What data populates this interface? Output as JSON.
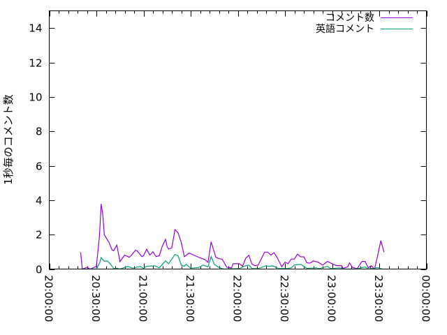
{
  "chart_data": {
    "type": "line",
    "title": "",
    "xlabel": "",
    "ylabel": "1秒毎のコメント数",
    "xlim": [
      "20:00:00",
      "00:00:00"
    ],
    "ylim": [
      0,
      15
    ],
    "x_ticks": [
      "20:00:00",
      "20:30:00",
      "21:00:00",
      "21:30:00",
      "22:00:00",
      "22:30:00",
      "23:00:00",
      "23:30:00",
      "00:00:00"
    ],
    "y_ticks": [
      0,
      2,
      4,
      6,
      8,
      10,
      12,
      14
    ],
    "grid": false,
    "legend_position": "top-right",
    "series": [
      {
        "name": "コメント数",
        "color": "#9400d3",
        "points": [
          [
            "20:20:00",
            0.97
          ],
          [
            "20:21:00",
            0
          ],
          [
            "20:24:00",
            0.1
          ],
          [
            "20:26:00",
            0
          ],
          [
            "20:30:00",
            0.15
          ],
          [
            "20:32:00",
            1.96
          ],
          [
            "20:33:00",
            3.78
          ],
          [
            "20:34:00",
            3.24
          ],
          [
            "20:35:00",
            2.0
          ],
          [
            "20:38:00",
            1.55
          ],
          [
            "20:40:00",
            1.1
          ],
          [
            "20:41:00",
            1.07
          ],
          [
            "20:43:00",
            1.39
          ],
          [
            "20:45:00",
            0.43
          ],
          [
            "20:48:00",
            0.81
          ],
          [
            "20:51:00",
            0.68
          ],
          [
            "20:55:00",
            1.1
          ],
          [
            "20:56:00",
            1.05
          ],
          [
            "20:59:00",
            0.72
          ],
          [
            "21:00:00",
            0.77
          ],
          [
            "21:02:00",
            1.15
          ],
          [
            "21:04:00",
            0.81
          ],
          [
            "21:06:00",
            1.0
          ],
          [
            "21:08:00",
            0.72
          ],
          [
            "21:10:00",
            0.77
          ],
          [
            "21:12:00",
            1.34
          ],
          [
            "21:14:00",
            1.72
          ],
          [
            "21:15:00",
            1.3
          ],
          [
            "21:16:00",
            1.16
          ],
          [
            "21:18:00",
            1.24
          ],
          [
            "21:20:00",
            2.29
          ],
          [
            "21:22:00",
            2.1
          ],
          [
            "21:24:00",
            1.55
          ],
          [
            "21:26:00",
            0.72
          ],
          [
            "21:29:00",
            0.93
          ],
          [
            "21:32:00",
            0.81
          ],
          [
            "21:36:00",
            0.65
          ],
          [
            "21:39:00",
            0.55
          ],
          [
            "21:41:00",
            0.39
          ],
          [
            "21:43:00",
            1.58
          ],
          [
            "21:46:00",
            0.68
          ],
          [
            "21:49:00",
            0.58
          ],
          [
            "21:50:00",
            0.58
          ],
          [
            "21:53:00",
            0.1
          ],
          [
            "21:56:00",
            0.07
          ],
          [
            "21:57:00",
            0.31
          ],
          [
            "22:01:00",
            0.31
          ],
          [
            "22:03:00",
            0.16
          ],
          [
            "22:05:00",
            0.63
          ],
          [
            "22:07:00",
            0.8
          ],
          [
            "22:09:00",
            0.28
          ],
          [
            "22:11:00",
            0.19
          ],
          [
            "22:13:00",
            0.24
          ],
          [
            "22:17:00",
            0.98
          ],
          [
            "22:19:00",
            0.98
          ],
          [
            "22:21:00",
            0.81
          ],
          [
            "22:23:00",
            0.95
          ],
          [
            "22:25:00",
            0.67
          ],
          [
            "22:28:00",
            0.13
          ],
          [
            "22:30:00",
            0.4
          ],
          [
            "22:32:00",
            0.31
          ],
          [
            "22:34:00",
            0.58
          ],
          [
            "22:36:00",
            0.58
          ],
          [
            "22:38:00",
            0.87
          ],
          [
            "22:40:00",
            0.71
          ],
          [
            "22:42:00",
            0.71
          ],
          [
            "22:44:00",
            0.36
          ],
          [
            "22:46:00",
            0.34
          ],
          [
            "22:48:00",
            0.47
          ],
          [
            "22:51:00",
            0.4
          ],
          [
            "22:54:00",
            0.23
          ],
          [
            "22:57:00",
            0.44
          ],
          [
            "23:00:00",
            0.31
          ],
          [
            "23:03:00",
            0.2
          ],
          [
            "23:06:00",
            0.2
          ],
          [
            "23:07:00",
            0.04
          ],
          [
            "23:10:00",
            0.13
          ],
          [
            "23:11:00",
            0.36
          ],
          [
            "23:13:00",
            0.09
          ],
          [
            "23:16:00",
            0.03
          ],
          [
            "23:19:00",
            0.44
          ],
          [
            "23:21:00",
            0.44
          ],
          [
            "23:23:00",
            0.07
          ],
          [
            "23:25:00",
            0.19
          ],
          [
            "23:27:00",
            0
          ],
          [
            "23:29:00",
            0.8
          ],
          [
            "23:31:00",
            1.66
          ],
          [
            "23:33:00",
            0.98
          ]
        ]
      },
      {
        "name": "英語コメント",
        "color": "#009e73",
        "points": [
          [
            "20:21:00",
            0
          ],
          [
            "20:30:00",
            0
          ],
          [
            "20:32:00",
            0.34
          ],
          [
            "20:33:00",
            0.67
          ],
          [
            "20:35:00",
            0.45
          ],
          [
            "20:37:00",
            0.47
          ],
          [
            "20:39:00",
            0.28
          ],
          [
            "20:41:00",
            0.03
          ],
          [
            "20:43:00",
            0.05
          ],
          [
            "20:45:00",
            0
          ],
          [
            "20:50:00",
            0.15
          ],
          [
            "20:53:00",
            0.05
          ],
          [
            "20:58:00",
            0.15
          ],
          [
            "21:00:00",
            0.03
          ],
          [
            "21:02:00",
            0.16
          ],
          [
            "21:07:00",
            0.19
          ],
          [
            "21:10:00",
            0.07
          ],
          [
            "21:14:00",
            0.47
          ],
          [
            "21:16:00",
            0.31
          ],
          [
            "21:20:00",
            0.85
          ],
          [
            "21:22:00",
            0.77
          ],
          [
            "21:24:00",
            0.23
          ],
          [
            "21:26:00",
            0.16
          ],
          [
            "21:27:00",
            0.28
          ],
          [
            "21:30:00",
            0.05
          ],
          [
            "21:35:00",
            0.09
          ],
          [
            "21:38:00",
            0.23
          ],
          [
            "21:41:00",
            0.13
          ],
          [
            "21:43:00",
            0.72
          ],
          [
            "21:45:00",
            0.28
          ],
          [
            "21:48:00",
            0.09
          ],
          [
            "21:51:00",
            0
          ],
          [
            "22:01:00",
            0.03
          ],
          [
            "22:04:00",
            0.16
          ],
          [
            "22:07:00",
            0.23
          ],
          [
            "22:09:00",
            0.03
          ],
          [
            "22:13:00",
            0.03
          ],
          [
            "22:18:00",
            0.19
          ],
          [
            "22:20:00",
            0.16
          ],
          [
            "22:22:00",
            0.19
          ],
          [
            "22:26:00",
            0.03
          ],
          [
            "22:31:00",
            0.03
          ],
          [
            "22:34:00",
            0.07
          ],
          [
            "22:36:00",
            0.24
          ],
          [
            "22:40:00",
            0.27
          ],
          [
            "22:44:00",
            0.04
          ],
          [
            "22:50:00",
            0.07
          ],
          [
            "22:52:00",
            0.03
          ],
          [
            "22:57:00",
            0.16
          ],
          [
            "22:59:00",
            0.03
          ],
          [
            "23:05:00",
            0.07
          ],
          [
            "23:08:00",
            0
          ],
          [
            "23:15:00",
            0
          ],
          [
            "23:21:00",
            0.12
          ],
          [
            "23:23:00",
            0
          ],
          [
            "23:29:00",
            0.08
          ],
          [
            "23:32:00",
            0
          ]
        ]
      }
    ]
  }
}
